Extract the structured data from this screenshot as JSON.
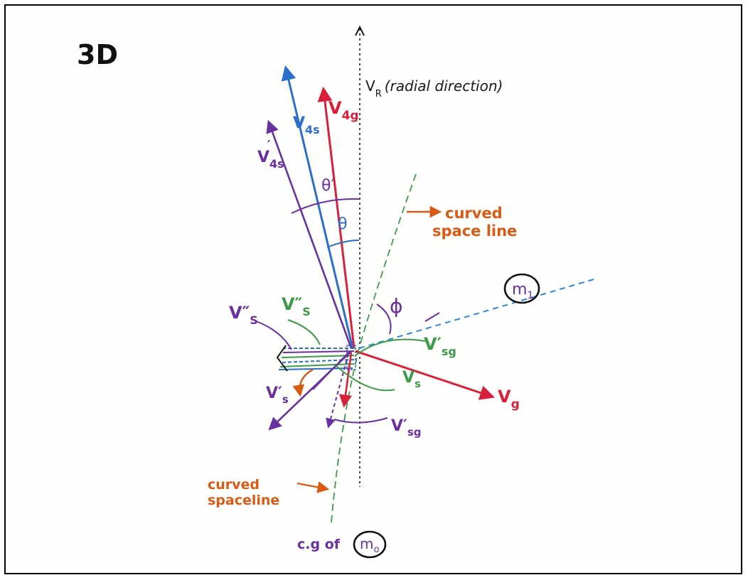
{
  "title": "3D",
  "colors": {
    "red": "#d8203a",
    "blue": "#2a6fc9",
    "purple": "#6a2fa0",
    "green": "#3e9a4a",
    "orange": "#d85a14",
    "black": "#1a1a1a"
  },
  "labels": {
    "vr": "V",
    "vr_sub": "R",
    "radial": "(radial direction)",
    "v4g": "V",
    "v4g_sub": "4g",
    "v4s": "V",
    "v4s_sub": "4s",
    "v4s_prime": "V",
    "v4s_prime_sub": "4s",
    "prime": "′",
    "theta_prime": "θ′",
    "theta": "θ",
    "curved_top_1": "curved",
    "curved_top_2": "space line",
    "m1": "m",
    "m1_sub": "1",
    "phi": "ϕ",
    "vs_dprime_purple": "V″",
    "vs_dprime_purple_sub": "S",
    "vs_dprime_green": "V″",
    "vs_dprime_green_sub": "S",
    "vsg_prime_green": "V′",
    "vsg_prime_green_sub": "sg",
    "vs_green": "V",
    "vs_green_sub": "s",
    "vg": "V",
    "vg_sub": "g",
    "vs_prime_purple": "V′",
    "vs_prime_purple_sub": "s",
    "vsg_prime_purple": "V′",
    "vsg_prime_purple_sub": "sg",
    "curved_bottom_1": "curved",
    "curved_bottom_2": "spaceline",
    "cg": "c.g of",
    "m0": "m",
    "m0_sub": "o"
  }
}
